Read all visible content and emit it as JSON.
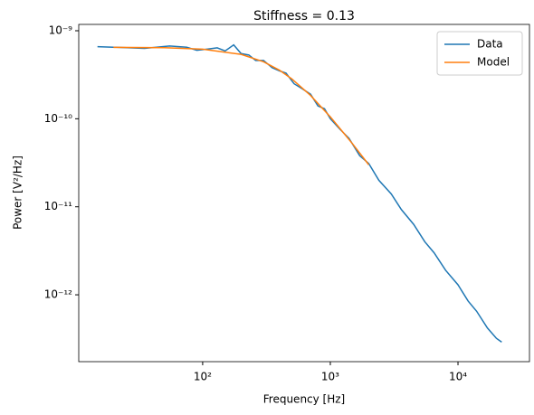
{
  "chart_data": {
    "type": "line",
    "title": "Stiffness = 0.13",
    "x_label": "Frequency [Hz]",
    "y_label": "Power [V²/Hz]",
    "x_log": true,
    "y_log": true,
    "xlim": [
      10.7,
      36300
    ],
    "ylim": [
      1.74e-13,
      1.18e-09
    ],
    "xticks": [
      {
        "value": 100,
        "label": "10²"
      },
      {
        "value": 1000,
        "label": "10³"
      },
      {
        "value": 10000,
        "label": "10⁴"
      }
    ],
    "yticks": [
      {
        "value": 1e-12,
        "label": "10⁻¹²"
      },
      {
        "value": 1e-11,
        "label": "10⁻¹¹"
      },
      {
        "value": 1e-10,
        "label": "10⁻¹⁰"
      },
      {
        "value": 1e-09,
        "label": "10⁻⁹"
      }
    ],
    "legend": "upper right",
    "series": [
      {
        "name": "Data",
        "color": "#1f77b4",
        "x": [
          15,
          20,
          35,
          55,
          75,
          90,
          110,
          130,
          150,
          175,
          200,
          230,
          260,
          300,
          350,
          400,
          450,
          520,
          600,
          700,
          800,
          900,
          1000,
          1200,
          1400,
          1700,
          2000,
          2400,
          3000,
          3600,
          4500,
          5500,
          6500,
          8000,
          10000,
          12000,
          14000,
          17000,
          20000,
          22000
        ],
        "values": [
          6.6e-10,
          6.5e-10,
          6.3e-10,
          6.7e-10,
          6.5e-10,
          6e-10,
          6.2e-10,
          6.4e-10,
          5.9e-10,
          6.9e-10,
          5.5e-10,
          5.3e-10,
          4.6e-10,
          4.6e-10,
          3.8e-10,
          3.5e-10,
          3.3e-10,
          2.5e-10,
          2.2e-10,
          1.9e-10,
          1.4e-10,
          1.3e-10,
          1e-10,
          7.5e-11,
          6e-11,
          3.8e-11,
          3.1e-11,
          2e-11,
          1.4e-11,
          9.3e-12,
          6.3e-12,
          4e-12,
          3e-12,
          1.9e-12,
          1.3e-12,
          8.5e-13,
          6.5e-13,
          4.2e-13,
          3.2e-13,
          2.9e-13
        ]
      },
      {
        "name": "Model",
        "color": "#ff7f0e",
        "x": [
          20,
          50,
          100,
          200,
          300,
          400,
          500,
          700,
          1000,
          1500,
          2000
        ],
        "values": [
          6.48e-10,
          6.42e-10,
          6.18e-10,
          5.39e-10,
          4.44e-10,
          3.56e-10,
          2.83e-10,
          1.84e-10,
          1.05e-10,
          5.15e-11,
          3e-11
        ]
      }
    ]
  }
}
